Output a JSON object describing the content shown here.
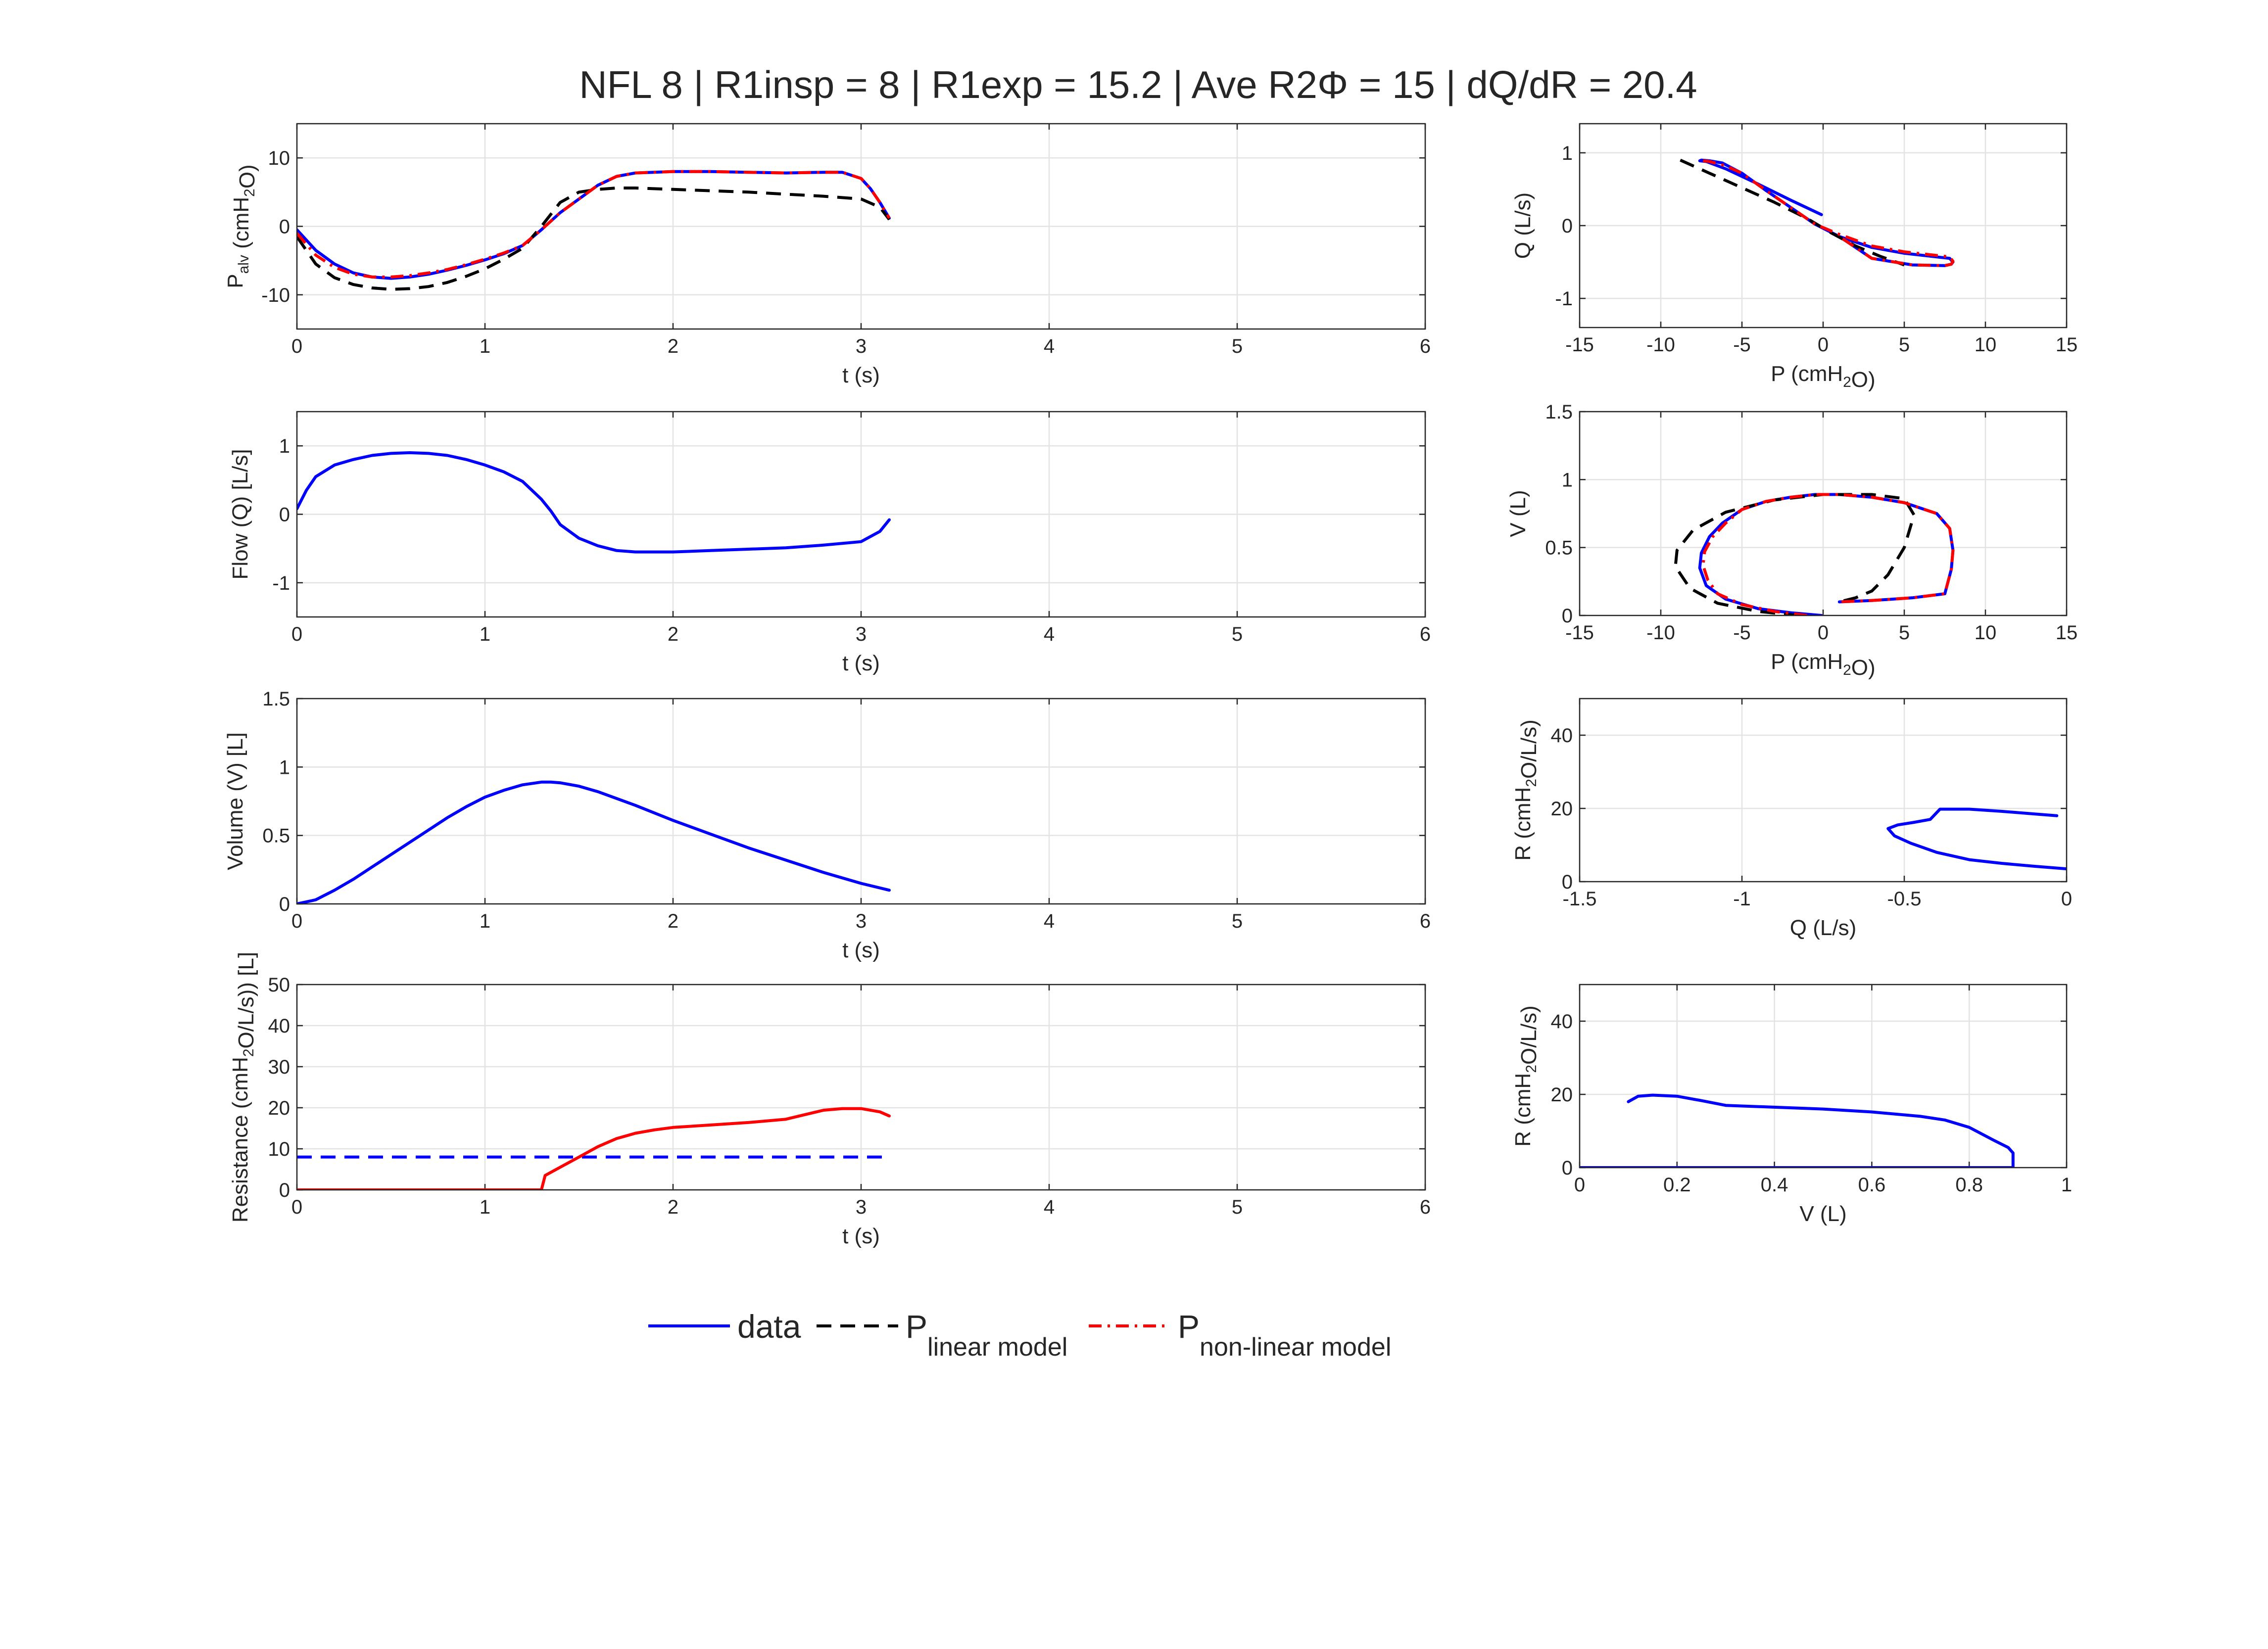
{
  "figure": {
    "title": "NFL 8 | R1insp = 8 | R1exp = 15.2 | Ave R2Φ = 15 | dQ/dR = 20.4"
  },
  "legend": {
    "placement": "bottom-center",
    "entries": [
      {
        "label": "data",
        "sub": "",
        "color": "#0000ff",
        "style": "solid"
      },
      {
        "label": "P",
        "sub": "linear model",
        "color": "#000000",
        "style": "dashed"
      },
      {
        "label": "P",
        "sub": "non-linear model",
        "color": "#ff0000",
        "style": "dashdot"
      }
    ]
  },
  "chart_data": [
    {
      "type": "line",
      "xlabel": "t (s)",
      "ylabel": {
        "main": "P",
        "sub": "alv",
        "rest1": " (cmH",
        "sub2": "2",
        "rest2": "O)"
      },
      "xlim": [
        0,
        6
      ],
      "ylim": [
        -15,
        15
      ],
      "xticks": [
        0,
        1,
        2,
        3,
        4,
        5,
        6
      ],
      "yticks": [
        -10,
        0,
        10
      ],
      "grid": true,
      "series": [
        {
          "name": "data",
          "color": "#0000ff",
          "dash": "solid",
          "x": [
            0,
            0.1,
            0.2,
            0.3,
            0.4,
            0.5,
            0.6,
            0.7,
            0.8,
            0.9,
            1.0,
            1.1,
            1.2,
            1.3,
            1.4,
            1.5,
            1.6,
            1.7,
            1.8,
            2.0,
            2.2,
            2.4,
            2.6,
            2.8,
            2.9,
            3.0,
            3.05,
            3.1,
            3.15
          ],
          "y": [
            -0.5,
            -3.5,
            -5.5,
            -6.8,
            -7.4,
            -7.6,
            -7.4,
            -7.0,
            -6.4,
            -5.7,
            -4.9,
            -4.0,
            -2.8,
            -0.5,
            2.0,
            4.0,
            6.0,
            7.3,
            7.8,
            8.0,
            8.0,
            7.9,
            7.8,
            7.9,
            7.9,
            7.0,
            5.5,
            3.5,
            1.2
          ]
        },
        {
          "name": "P linear model",
          "color": "#000000",
          "dash": "dashed",
          "x": [
            0,
            0.1,
            0.2,
            0.3,
            0.4,
            0.5,
            0.6,
            0.7,
            0.8,
            0.9,
            1.0,
            1.1,
            1.2,
            1.3,
            1.4,
            1.5,
            1.6,
            1.7,
            1.8,
            2.0,
            2.2,
            2.4,
            2.6,
            2.8,
            3.0,
            3.1,
            3.15
          ],
          "y": [
            -1.5,
            -5.5,
            -7.5,
            -8.5,
            -9.0,
            -9.2,
            -9.1,
            -8.8,
            -8.2,
            -7.3,
            -6.2,
            -4.8,
            -3.2,
            0.0,
            3.5,
            5.0,
            5.4,
            5.6,
            5.6,
            5.4,
            5.2,
            5.0,
            4.7,
            4.4,
            4.0,
            2.8,
            1.0
          ]
        },
        {
          "name": "P non-linear model",
          "color": "#ff0000",
          "dash": "dashdot",
          "x": [
            0,
            0.1,
            0.2,
            0.3,
            0.4,
            0.5,
            0.6,
            0.7,
            0.8,
            0.9,
            1.0,
            1.1,
            1.2,
            1.3,
            1.4,
            1.5,
            1.6,
            1.7,
            1.8,
            2.0,
            2.2,
            2.4,
            2.6,
            2.8,
            2.9,
            3.0,
            3.05,
            3.1,
            3.15
          ],
          "y": [
            -1.0,
            -4.2,
            -6.0,
            -7.0,
            -7.4,
            -7.4,
            -7.2,
            -6.8,
            -6.3,
            -5.6,
            -4.8,
            -3.9,
            -2.8,
            -0.5,
            2.0,
            4.0,
            6.0,
            7.3,
            7.8,
            8.0,
            8.0,
            7.9,
            7.8,
            7.9,
            7.9,
            7.0,
            5.5,
            3.5,
            1.2
          ]
        }
      ]
    },
    {
      "type": "line",
      "xlabel": "t (s)",
      "ylabel": {
        "main": "Flow (Q) [L/s]"
      },
      "xlim": [
        0,
        6
      ],
      "ylim": [
        -1.5,
        1.5
      ],
      "xticks": [
        0,
        1,
        2,
        3,
        4,
        5,
        6
      ],
      "yticks": [
        -1,
        0,
        1
      ],
      "grid": true,
      "series": [
        {
          "name": "data",
          "color": "#0000ff",
          "dash": "solid",
          "x": [
            0,
            0.05,
            0.1,
            0.2,
            0.3,
            0.4,
            0.5,
            0.6,
            0.7,
            0.8,
            0.9,
            1.0,
            1.1,
            1.2,
            1.3,
            1.35,
            1.4,
            1.5,
            1.6,
            1.7,
            1.8,
            2.0,
            2.2,
            2.4,
            2.6,
            2.8,
            3.0,
            3.1,
            3.15
          ],
          "y": [
            0.08,
            0.35,
            0.55,
            0.72,
            0.8,
            0.86,
            0.89,
            0.9,
            0.89,
            0.86,
            0.8,
            0.72,
            0.62,
            0.48,
            0.22,
            0.05,
            -0.15,
            -0.35,
            -0.46,
            -0.53,
            -0.55,
            -0.55,
            -0.53,
            -0.51,
            -0.49,
            -0.45,
            -0.4,
            -0.25,
            -0.08
          ]
        }
      ]
    },
    {
      "type": "line",
      "xlabel": "t (s)",
      "ylabel": {
        "main": "Volume (V) [L]"
      },
      "xlim": [
        0,
        6
      ],
      "ylim": [
        0,
        1.5
      ],
      "xticks": [
        0,
        1,
        2,
        3,
        4,
        5,
        6
      ],
      "yticks": [
        0,
        0.5,
        1,
        1.5
      ],
      "grid": true,
      "series": [
        {
          "name": "data",
          "color": "#0000ff",
          "dash": "solid",
          "x": [
            0,
            0.1,
            0.2,
            0.3,
            0.4,
            0.5,
            0.6,
            0.7,
            0.8,
            0.9,
            1.0,
            1.1,
            1.2,
            1.3,
            1.35,
            1.4,
            1.5,
            1.6,
            1.8,
            2.0,
            2.2,
            2.4,
            2.6,
            2.8,
            3.0,
            3.15
          ],
          "y": [
            0,
            0.03,
            0.1,
            0.18,
            0.27,
            0.36,
            0.45,
            0.54,
            0.63,
            0.71,
            0.78,
            0.83,
            0.87,
            0.89,
            0.89,
            0.885,
            0.86,
            0.82,
            0.72,
            0.61,
            0.51,
            0.41,
            0.32,
            0.23,
            0.15,
            0.1
          ]
        }
      ]
    },
    {
      "type": "line",
      "xlabel": "t (s)",
      "ylabel": {
        "main": "Resistance (cmH",
        "sub2": "2",
        "rest2": "O/L/s)) [L]"
      },
      "xlim": [
        0,
        6
      ],
      "ylim": [
        0,
        50
      ],
      "xticks": [
        0,
        1,
        2,
        3,
        4,
        5,
        6
      ],
      "yticks": [
        0,
        10,
        20,
        30,
        40,
        50
      ],
      "grid": true,
      "series": [
        {
          "name": "R1",
          "color": "#0000ff",
          "dash": "dashed",
          "x": [
            0,
            3.15
          ],
          "y": [
            8,
            8
          ]
        },
        {
          "name": "R2",
          "color": "#ff0000",
          "dash": "solid",
          "x": [
            0,
            1.3,
            1.32,
            1.4,
            1.5,
            1.6,
            1.7,
            1.8,
            1.9,
            2.0,
            2.2,
            2.4,
            2.6,
            2.7,
            2.8,
            2.9,
            3.0,
            3.1,
            3.15
          ],
          "y": [
            0,
            0,
            3.5,
            5.5,
            8.0,
            10.5,
            12.5,
            13.8,
            14.6,
            15.2,
            15.8,
            16.4,
            17.2,
            18.3,
            19.4,
            19.8,
            19.8,
            19.0,
            18.0
          ]
        }
      ]
    },
    {
      "type": "line",
      "xlabel": {
        "main": "P (cmH",
        "sub2": "2",
        "rest2": "O)"
      },
      "ylabel": {
        "main": "Q (L/s)"
      },
      "xlim": [
        -15,
        15
      ],
      "ylim": [
        -1.4,
        1.4
      ],
      "xticks": [
        -15,
        -10,
        -5,
        0,
        5,
        10,
        15
      ],
      "yticks": [
        -1,
        0,
        1
      ],
      "grid": true,
      "series": [
        {
          "name": "data",
          "color": "#0000ff",
          "dash": "solid",
          "x": [
            -0.1,
            -2.0,
            -4.0,
            -6.0,
            -7.2,
            -7.6,
            -7.5,
            -7.0,
            -6.2,
            -5.0,
            -3.5,
            -2.0,
            -0.5,
            1.0,
            3.0,
            5.0,
            7.0,
            7.8,
            8.0,
            7.9,
            7.5,
            5.5,
            3.0,
            1.0
          ],
          "y": [
            0.15,
            0.35,
            0.57,
            0.78,
            0.88,
            0.89,
            0.9,
            0.89,
            0.86,
            0.72,
            0.48,
            0.25,
            0.02,
            -0.15,
            -0.3,
            -0.38,
            -0.43,
            -0.45,
            -0.5,
            -0.53,
            -0.55,
            -0.54,
            -0.45,
            -0.15
          ]
        },
        {
          "name": "P linear model",
          "color": "#000000",
          "dash": "dashed",
          "x": [
            -8.8,
            -7.0,
            -5.0,
            -3.0,
            -1.0,
            0.5,
            2.0,
            3.5,
            4.5,
            5.0
          ],
          "y": [
            0.9,
            0.72,
            0.52,
            0.32,
            0.1,
            -0.1,
            -0.28,
            -0.42,
            -0.5,
            -0.54
          ]
        },
        {
          "name": "P non-linear model",
          "color": "#ff0000",
          "dash": "dashdot",
          "x": [
            -7.4,
            -7.0,
            -6.0,
            -5.0,
            -3.5,
            -2.0,
            -0.5,
            1.0,
            3.0,
            5.0,
            7.0,
            7.8,
            8.0,
            7.9,
            7.5,
            5.5,
            3.0,
            1.0
          ],
          "y": [
            0.89,
            0.88,
            0.82,
            0.72,
            0.48,
            0.25,
            0.02,
            -0.12,
            -0.28,
            -0.36,
            -0.41,
            -0.43,
            -0.49,
            -0.53,
            -0.55,
            -0.54,
            -0.45,
            -0.15
          ]
        }
      ]
    },
    {
      "type": "line",
      "xlabel": {
        "main": "P (cmH",
        "sub2": "2",
        "rest2": "O)"
      },
      "ylabel": {
        "main": "V (L)"
      },
      "xlim": [
        -15,
        15
      ],
      "ylim": [
        0,
        1.5
      ],
      "xticks": [
        -15,
        -10,
        -5,
        0,
        5,
        10,
        15
      ],
      "yticks": [
        0,
        0.5,
        1,
        1.5
      ],
      "grid": true,
      "series": [
        {
          "name": "data",
          "color": "#0000ff",
          "dash": "solid",
          "x": [
            -0.1,
            -2.0,
            -4.0,
            -6.0,
            -7.2,
            -7.6,
            -7.5,
            -7.0,
            -6.2,
            -5.0,
            -3.5,
            -2.0,
            -0.5,
            1.0,
            3.0,
            5.0,
            7.0,
            7.8,
            8.0,
            7.9,
            7.5,
            5.5,
            3.0,
            1.0
          ],
          "y": [
            0.0,
            0.02,
            0.05,
            0.12,
            0.22,
            0.35,
            0.46,
            0.58,
            0.68,
            0.78,
            0.84,
            0.87,
            0.89,
            0.89,
            0.87,
            0.83,
            0.75,
            0.64,
            0.48,
            0.34,
            0.16,
            0.13,
            0.11,
            0.1
          ]
        },
        {
          "name": "P linear model",
          "color": "#000000",
          "dash": "dashed",
          "x": [
            -1.5,
            -4.0,
            -6.5,
            -8.2,
            -9.1,
            -9.0,
            -8.0,
            -6.0,
            -3.0,
            0.0,
            3.0,
            5.0,
            5.6,
            5.0,
            4.0,
            3.0,
            2.0,
            1.0
          ],
          "y": [
            0.0,
            0.03,
            0.09,
            0.2,
            0.36,
            0.48,
            0.63,
            0.76,
            0.85,
            0.89,
            0.89,
            0.86,
            0.74,
            0.5,
            0.3,
            0.18,
            0.13,
            0.1
          ]
        },
        {
          "name": "P non-linear model",
          "color": "#ff0000",
          "dash": "dashdot",
          "x": [
            -1.0,
            -3.0,
            -5.0,
            -6.5,
            -7.1,
            -7.4,
            -7.3,
            -6.8,
            -6.0,
            -5.0,
            -3.5,
            -2.0,
            -0.5,
            1.0,
            3.0,
            5.0,
            7.0,
            7.8,
            8.0,
            7.9,
            7.5,
            5.5,
            3.0,
            1.0
          ],
          "y": [
            0.0,
            0.03,
            0.08,
            0.16,
            0.26,
            0.37,
            0.47,
            0.58,
            0.68,
            0.78,
            0.84,
            0.87,
            0.89,
            0.89,
            0.87,
            0.83,
            0.75,
            0.64,
            0.48,
            0.34,
            0.16,
            0.13,
            0.11,
            0.1
          ]
        }
      ]
    },
    {
      "type": "line",
      "xlabel": {
        "main": "Q (L/s)"
      },
      "ylabel": {
        "main": "R (cmH",
        "sub2": "2",
        "rest2": "O/L/s)"
      },
      "xlim": [
        -1.5,
        0
      ],
      "ylim": [
        0,
        50
      ],
      "xticks": [
        -1.5,
        -1,
        -0.5,
        0
      ],
      "yticks": [
        0,
        20,
        40
      ],
      "grid": true,
      "series": [
        {
          "name": "data",
          "color": "#0000ff",
          "dash": "solid",
          "x": [
            0.0,
            -0.1,
            -0.2,
            -0.3,
            -0.4,
            -0.48,
            -0.53,
            -0.55,
            -0.52,
            -0.47,
            -0.42,
            -0.39,
            -0.3,
            -0.2,
            -0.1,
            -0.03
          ],
          "y": [
            3.5,
            4.2,
            5.0,
            6.0,
            8.0,
            10.5,
            12.5,
            14.5,
            15.5,
            16.2,
            17.0,
            19.8,
            19.8,
            19.2,
            18.5,
            18.0
          ]
        }
      ]
    },
    {
      "type": "line",
      "xlabel": {
        "main": "V (L)"
      },
      "ylabel": {
        "main": "R (cmH",
        "sub2": "2",
        "rest2": "O/L/s)"
      },
      "xlim": [
        0,
        1
      ],
      "ylim": [
        0,
        50
      ],
      "xticks": [
        0,
        0.2,
        0.4,
        0.6,
        0.8,
        1
      ],
      "yticks": [
        0,
        20,
        40
      ],
      "grid": true,
      "series": [
        {
          "name": "data",
          "color": "#0000ff",
          "dash": "solid",
          "x": [
            0.1,
            0.12,
            0.15,
            0.2,
            0.25,
            0.3,
            0.4,
            0.5,
            0.6,
            0.7,
            0.75,
            0.8,
            0.85,
            0.88,
            0.89,
            0.89,
            0.8,
            0.6,
            0.4,
            0.2,
            0.0
          ],
          "y": [
            18.0,
            19.5,
            19.8,
            19.5,
            18.3,
            17.0,
            16.5,
            16.0,
            15.2,
            14.0,
            13.0,
            11.0,
            7.5,
            5.5,
            4.0,
            0.0,
            0.0,
            0.0,
            0.0,
            0.0,
            0.0
          ]
        }
      ]
    }
  ]
}
